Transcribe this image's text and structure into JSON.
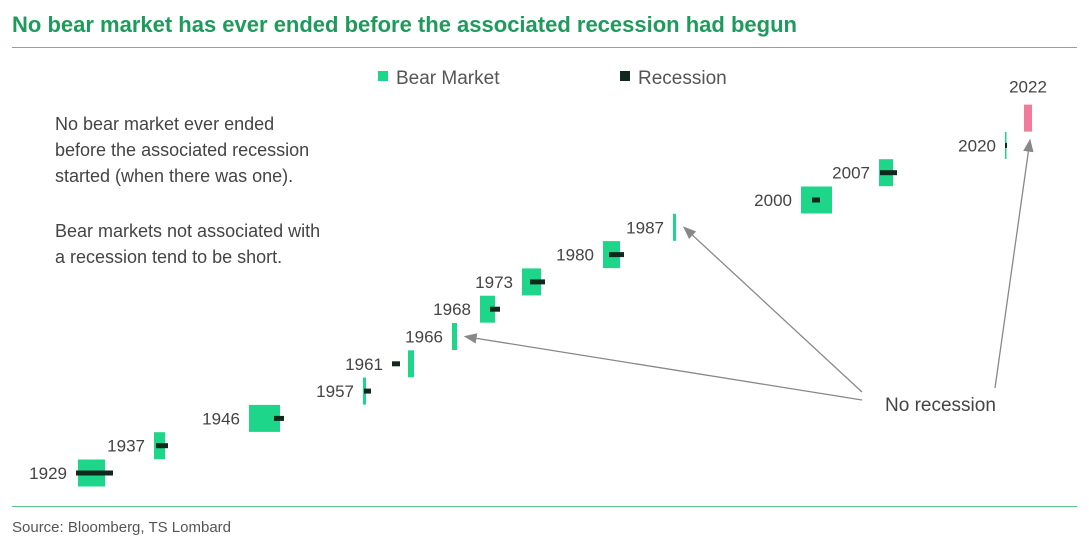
{
  "title": "No bear market has ever ended before the associated recession had begun",
  "notes": [
    [
      "No bear market ever ended",
      "before the associated recession",
      "started (when there was one)."
    ],
    [
      "Bear markets not associated with",
      "a recession tend to be short."
    ]
  ],
  "source": "Source: Bloomberg, TS Lombard",
  "chart_data": {
    "type": "bar",
    "subtype": "floating-timeline",
    "legend": [
      {
        "label": "Bear Market",
        "color": "#1ed68a"
      },
      {
        "label": "Recession",
        "color": "#0f2a1c"
      }
    ],
    "legend_placement": "top",
    "x_units": "schematic time index",
    "episodes": [
      {
        "label": "1929",
        "bear": [
          7.8,
          10.5
        ],
        "recession": [
          7.6,
          11.3
        ]
      },
      {
        "label": "1937",
        "bear": [
          15.4,
          16.5
        ],
        "recession": [
          15.6,
          16.8
        ]
      },
      {
        "label": "1946",
        "bear": [
          24.9,
          28.0
        ],
        "recession": [
          27.4,
          28.4
        ]
      },
      {
        "label": "1957",
        "bear": [
          36.3,
          36.6
        ],
        "recession": [
          36.4,
          37.1
        ]
      },
      {
        "label": "1961",
        "bear": [
          40.8,
          41.4
        ],
        "recession": [
          39.2,
          40.0
        ]
      },
      {
        "label": "1966",
        "bear": [
          45.2,
          45.7
        ],
        "recession": null
      },
      {
        "label": "1968",
        "bear": [
          48.0,
          49.5
        ],
        "recession": [
          49.0,
          50.0
        ]
      },
      {
        "label": "1973",
        "bear": [
          52.2,
          54.1
        ],
        "recession": [
          53.0,
          54.5
        ]
      },
      {
        "label": "1980",
        "bear": [
          60.3,
          62.0
        ],
        "recession": [
          60.9,
          62.4
        ]
      },
      {
        "label": "1987",
        "bear": [
          67.3,
          67.6
        ],
        "recession": null
      },
      {
        "label": "2000",
        "bear": [
          80.1,
          83.2
        ],
        "recession": [
          81.2,
          82.0
        ]
      },
      {
        "label": "2007",
        "bear": [
          87.9,
          89.3
        ],
        "recession": [
          88.0,
          89.7
        ]
      },
      {
        "label": "2020",
        "bear": [
          100.5,
          100.6
        ],
        "recession": [
          100.5,
          100.7
        ]
      },
      {
        "label": "2022",
        "bear": [
          102.4,
          103.2
        ],
        "recession": null,
        "color": "#f27a9a",
        "label_position": "above"
      }
    ],
    "annotations": [
      {
        "text": "No recession",
        "points_to": [
          "1966",
          "1987",
          "2022"
        ]
      }
    ]
  }
}
